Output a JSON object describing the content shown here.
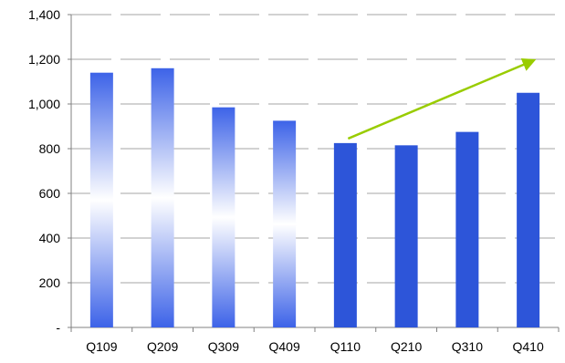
{
  "chart_data": {
    "type": "bar",
    "title": "",
    "xlabel": "",
    "ylabel": "",
    "categories": [
      "Q109",
      "Q209",
      "Q309",
      "Q409",
      "Q110",
      "Q210",
      "Q310",
      "Q410"
    ],
    "values": [
      1140,
      1160,
      985,
      925,
      825,
      815,
      875,
      1050
    ],
    "ylim": [
      0,
      1400
    ],
    "yticks": [
      0,
      200,
      400,
      600,
      800,
      1000,
      1200,
      1400
    ],
    "ytick_labels": [
      "-",
      "200",
      "400",
      "600",
      "800",
      "1,000",
      "1,200",
      "1,400"
    ],
    "grid": true,
    "grid_style": "dashed",
    "bar_styles": [
      "gradient",
      "gradient",
      "gradient",
      "gradient",
      "solid",
      "solid",
      "solid",
      "solid"
    ],
    "colors": {
      "bar_solid": "#2d55d9",
      "bar_gradient_edge": "#3d63e8",
      "bar_gradient_center": "#ffffff",
      "trend_arrow": "#99cc00",
      "grid": "#a6a6a6",
      "axis": "#808080"
    },
    "annotations": [
      {
        "type": "arrow",
        "description": "upward trend arrow",
        "from": {
          "category": "Q110",
          "value": 845
        },
        "to": {
          "category": "Q410",
          "value": 1195
        }
      }
    ]
  }
}
